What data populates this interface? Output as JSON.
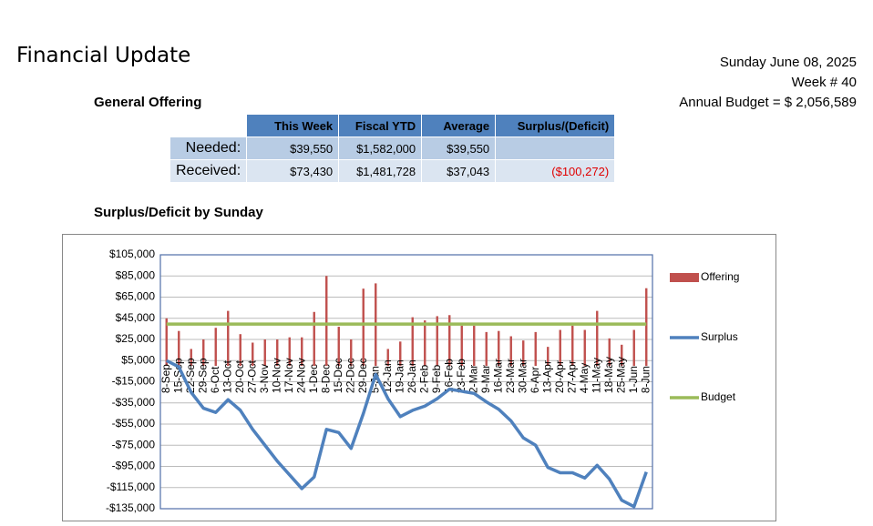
{
  "header": {
    "title": "Financial Update",
    "date": "Sunday June 08, 2025",
    "week": "Week # 40",
    "budget": "Annual Budget = $ 2,056,589"
  },
  "section": "General Offering",
  "table": {
    "columns": [
      "This Week",
      "Fiscal YTD",
      "Average",
      "Surplus/(Deficit)"
    ],
    "rows": [
      {
        "label": "Needed:",
        "cells": [
          "$39,550",
          "$1,582,000",
          "$39,550"
        ]
      },
      {
        "label": "Received:",
        "cells": [
          "$73,430",
          "$1,481,728",
          "$37,043",
          "($100,272)"
        ]
      }
    ]
  },
  "chart_data": {
    "type": "bar",
    "title": "Surplus/Deficit by Sunday",
    "categories": [
      "8-Sep",
      "15-Sep",
      "22-Sep",
      "29-Sep",
      "6-Oct",
      "13-Oct",
      "20-Oct",
      "27-Oct",
      "3-Nov",
      "10-Nov",
      "17-Nov",
      "24-Nov",
      "1-Dec",
      "8-Dec",
      "15-Dec",
      "22-Dec",
      "29-Dec",
      "5-Jan",
      "12-Jan",
      "19-Jan",
      "26-Jan",
      "2-Feb",
      "9-Feb",
      "16-Feb",
      "23-Feb",
      "2-Mar",
      "9-Mar",
      "16-Mar",
      "23-Mar",
      "30-Mar",
      "6-Apr",
      "13-Apr",
      "20-Apr",
      "27-Apr",
      "4-May",
      "11-May",
      "18-May",
      "25-May",
      "1-Jun",
      "8-Jun"
    ],
    "series": [
      {
        "name": "Offering",
        "type": "bar",
        "color": "#c0504d",
        "values": [
          45000,
          33000,
          16000,
          25000,
          36000,
          52000,
          30000,
          22000,
          25000,
          25000,
          27000,
          27000,
          51000,
          85000,
          37000,
          25000,
          73000,
          78000,
          16000,
          23000,
          46000,
          43000,
          47000,
          48000,
          38000,
          38000,
          32000,
          33000,
          28000,
          24000,
          32000,
          18000,
          34000,
          38000,
          34000,
          52000,
          26000,
          20000,
          34000,
          73430
        ]
      },
      {
        "name": "Surplus",
        "type": "line",
        "color": "#4f81bd",
        "values": [
          5000,
          -1000,
          -25000,
          -40000,
          -44000,
          -32000,
          -42000,
          -60000,
          -75000,
          -90000,
          -103000,
          -116000,
          -105000,
          -60000,
          -63000,
          -78000,
          -45000,
          -8000,
          -31000,
          -48000,
          -42000,
          -38000,
          -31000,
          -22000,
          -24000,
          -26000,
          -34000,
          -41000,
          -52000,
          -68000,
          -75000,
          -96000,
          -101000,
          -101000,
          -106000,
          -94000,
          -107000,
          -127000,
          -133000,
          -100272
        ]
      },
      {
        "name": "Budget",
        "type": "line",
        "color": "#9bbb59",
        "values": [
          39550,
          39550,
          39550,
          39550,
          39550,
          39550,
          39550,
          39550,
          39550,
          39550,
          39550,
          39550,
          39550,
          39550,
          39550,
          39550,
          39550,
          39550,
          39550,
          39550,
          39550,
          39550,
          39550,
          39550,
          39550,
          39550,
          39550,
          39550,
          39550,
          39550,
          39550,
          39550,
          39550,
          39550,
          39550,
          39550,
          39550,
          39550,
          39550,
          39550
        ]
      }
    ],
    "ylim": [
      -135000,
      105000
    ],
    "yticks": [
      {
        "value": 105000,
        "label": "$105,000"
      },
      {
        "value": 85000,
        "label": "$85,000"
      },
      {
        "value": 65000,
        "label": "$65,000"
      },
      {
        "value": 45000,
        "label": "$45,000"
      },
      {
        "value": 25000,
        "label": "$25,000"
      },
      {
        "value": 5000,
        "label": "$5,000"
      },
      {
        "value": -15000,
        "label": "-$15,000"
      },
      {
        "value": -35000,
        "label": "-$35,000"
      },
      {
        "value": -55000,
        "label": "-$55,000"
      },
      {
        "value": -75000,
        "label": "-$75,000"
      },
      {
        "value": -95000,
        "label": "-$95,000"
      },
      {
        "value": -115000,
        "label": "-$115,000"
      },
      {
        "value": -135000,
        "label": "-$135,000"
      }
    ],
    "grid": true,
    "legend": "right"
  }
}
